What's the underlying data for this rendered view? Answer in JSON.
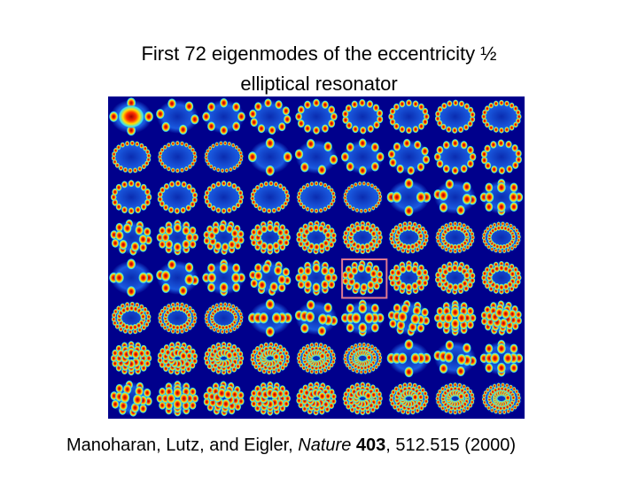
{
  "title": {
    "lines": [
      "First 72 eigenmodes of the eccentricity ½",
      "elliptical  resonator"
    ]
  },
  "citation": {
    "authors": "Manoharan, Lutz, and Eigler, ",
    "journal": "Nature",
    "volume": "403",
    "pages": ", 512.515 (2000)"
  }
}
